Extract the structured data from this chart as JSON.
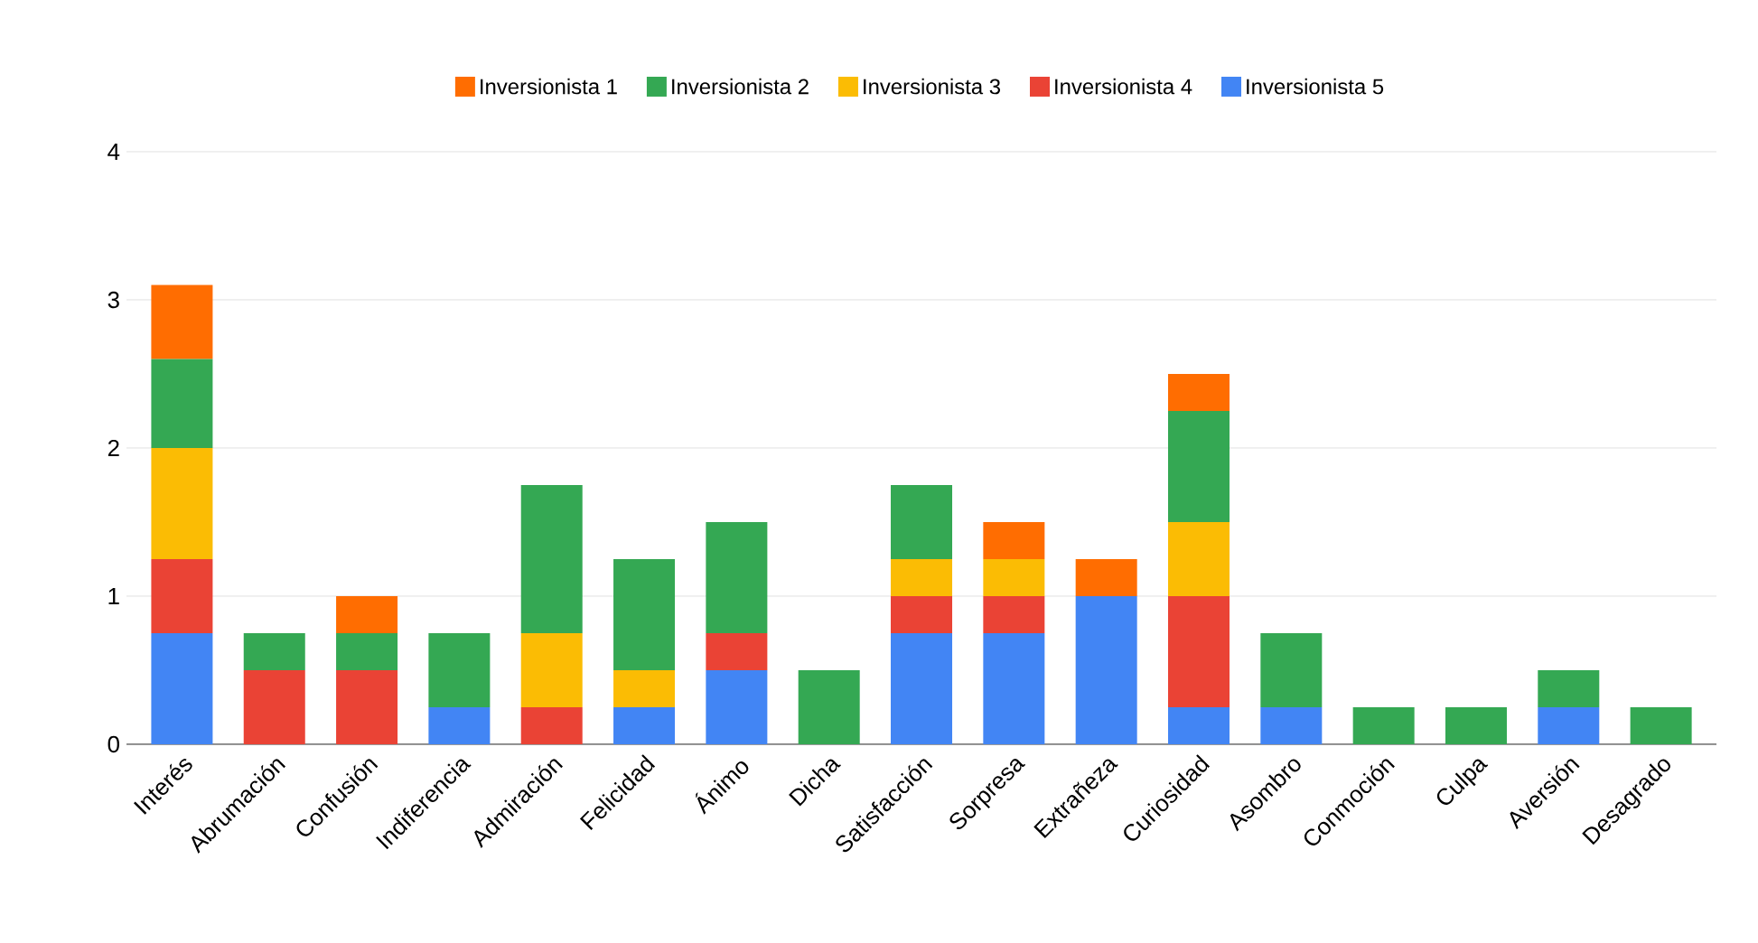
{
  "chart_data": {
    "type": "bar",
    "stacked": true,
    "categories": [
      "Interés",
      "Abrumación",
      "Confusión",
      "Indiferencia",
      "Admiración",
      "Felicidad",
      "Ánimo",
      "Dicha",
      "Satisfacción",
      "Sorpresa",
      "Extrañeza",
      "Curiosidad",
      "Asombro",
      "Conmoción",
      "Culpa",
      "Aversión",
      "Desagrado"
    ],
    "series": [
      {
        "name": "Inversionista 5",
        "color": "#4285f4",
        "values": [
          0.75,
          0,
          0,
          0.25,
          0,
          0.25,
          0.5,
          0,
          0.75,
          0.75,
          1.0,
          0.25,
          0.25,
          0,
          0,
          0.25,
          0
        ]
      },
      {
        "name": "Inversionista 4",
        "color": "#ea4335",
        "values": [
          0.5,
          0.5,
          0.5,
          0,
          0.25,
          0,
          0.25,
          0,
          0.25,
          0.25,
          0,
          0.75,
          0,
          0,
          0,
          0,
          0
        ]
      },
      {
        "name": "Inversionista 3",
        "color": "#fbbc04",
        "values": [
          0.75,
          0,
          0,
          0,
          0.5,
          0.25,
          0,
          0,
          0.25,
          0.25,
          0,
          0.5,
          0,
          0,
          0,
          0,
          0
        ]
      },
      {
        "name": "Inversionista 2",
        "color": "#34a853",
        "values": [
          0.6,
          0.25,
          0.25,
          0.5,
          1.0,
          0.75,
          0.75,
          0.5,
          0.5,
          0,
          0,
          0.75,
          0.5,
          0.25,
          0.25,
          0.25,
          0.25
        ]
      },
      {
        "name": "Inversionista 1",
        "color": "#ff6d01",
        "values": [
          0.5,
          0,
          0.25,
          0,
          0,
          0,
          0,
          0,
          0,
          0.25,
          0.25,
          0.25,
          0,
          0,
          0,
          0,
          0
        ]
      }
    ],
    "ylim": [
      0,
      4
    ],
    "yticks": [
      0,
      1,
      2,
      3,
      4
    ],
    "grid": "y",
    "legend": "top"
  }
}
